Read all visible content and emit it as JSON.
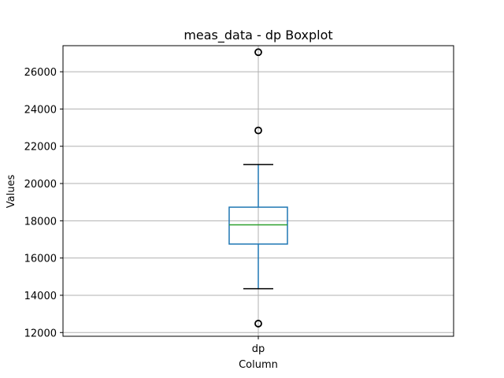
{
  "chart_data": {
    "type": "boxplot",
    "title": "meas_data - dp Boxplot",
    "xlabel": "Column",
    "ylabel": "Values",
    "categories": [
      "dp"
    ],
    "ylim": [
      11800,
      27400
    ],
    "yticks": [
      12000,
      14000,
      16000,
      18000,
      20000,
      22000,
      24000,
      26000
    ],
    "grid": true,
    "series": [
      {
        "category": "dp",
        "whisker_low": 14350,
        "q1": 16750,
        "median": 17780,
        "q3": 18730,
        "whisker_high": 21020,
        "outliers": [
          27050,
          22850,
          12480
        ]
      }
    ],
    "colors": {
      "box": "#1f77b4",
      "median": "#2ca02c",
      "whisker_cap": "#000000",
      "flier": "#000000",
      "grid": "#b0b0b0",
      "axes": "#000000"
    }
  }
}
